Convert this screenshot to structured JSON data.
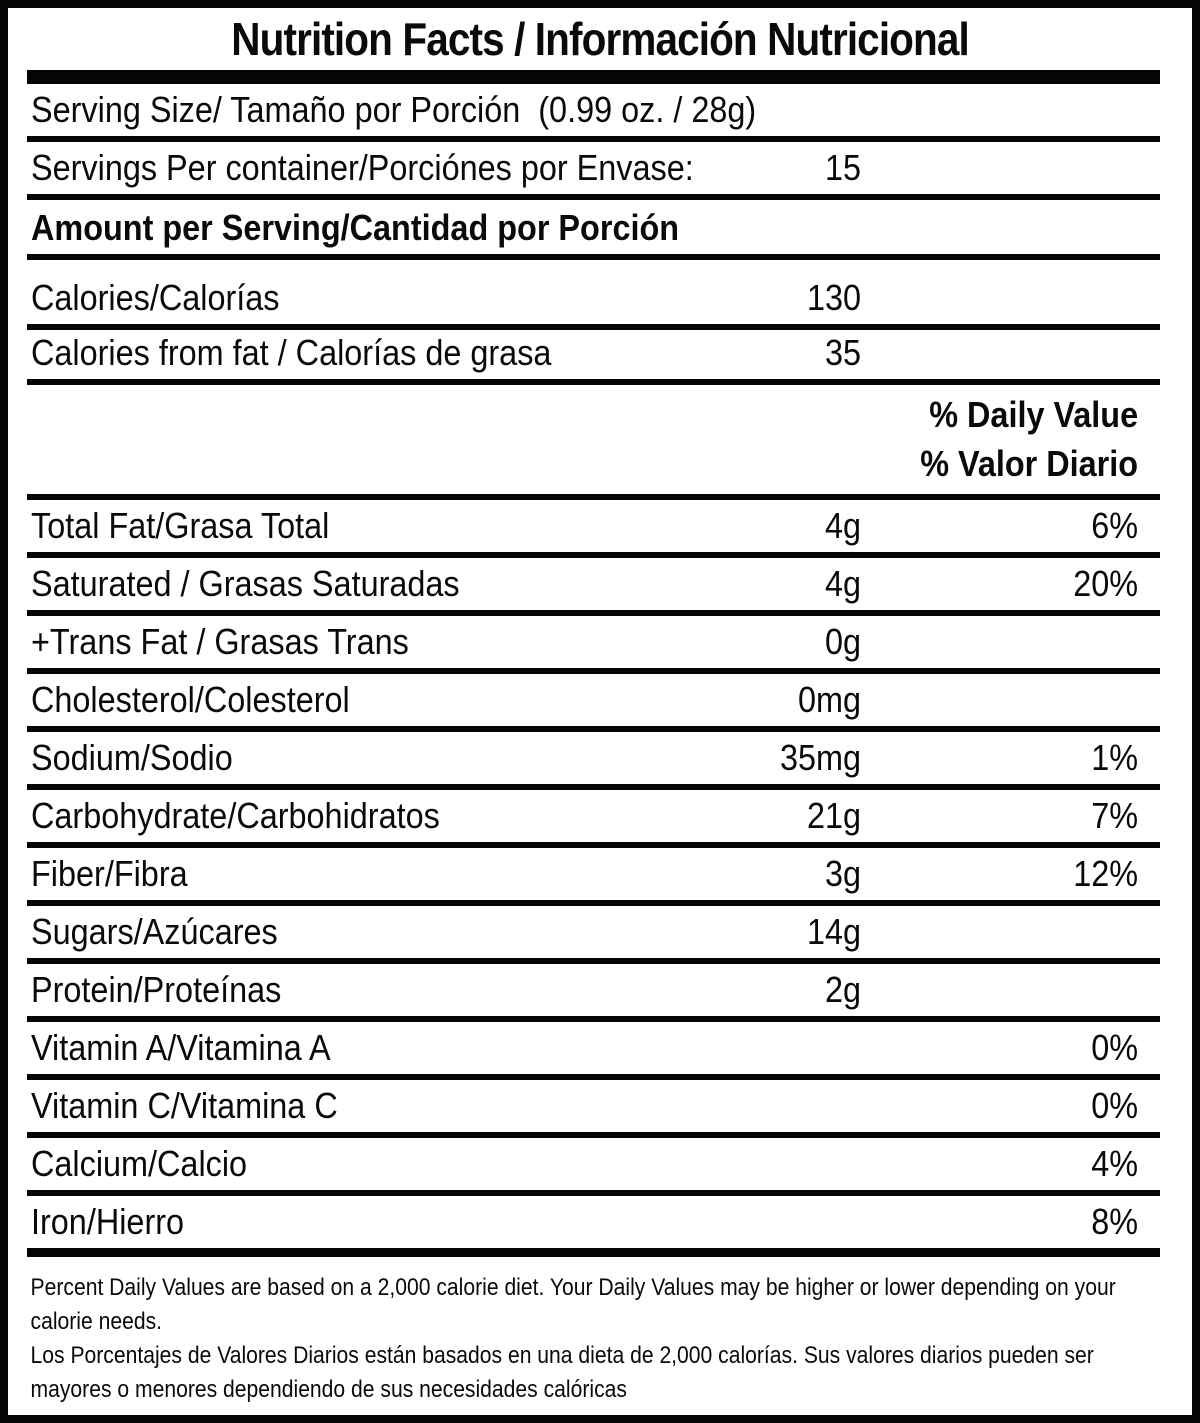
{
  "title": "Nutrition Facts / Información Nutricional",
  "serving_size": {
    "label": "Serving Size/ Tamaño por Porción",
    "value": "(0.99 oz. / 28g)"
  },
  "servings_per_container": {
    "label": "Servings Per container/Porciónes por Envase:",
    "value": "15"
  },
  "amount_per_serving_header": "Amount per Serving/Cantidad por Porción",
  "calories": {
    "label": "Calories/Calorías",
    "value": "130"
  },
  "calories_from_fat": {
    "label": "Calories from fat / Calorías de grasa",
    "value": "35"
  },
  "daily_value_header": {
    "en": "% Daily Value",
    "es": "% Valor Diario"
  },
  "nutrients": [
    {
      "label": "Total Fat/Grasa Total",
      "amount": "4g",
      "dv": "6%"
    },
    {
      "label": "Saturated / Grasas Saturadas",
      "amount": "4g",
      "dv": "20%"
    },
    {
      "label": "+Trans Fat / Grasas Trans",
      "amount": "0g",
      "dv": ""
    },
    {
      "label": "Cholesterol/Colesterol",
      "amount": "0mg",
      "dv": ""
    },
    {
      "label": "Sodium/Sodio",
      "amount": "35mg",
      "dv": "1%"
    },
    {
      "label": "Carbohydrate/Carbohidratos",
      "amount": "21g",
      "dv": "7%"
    },
    {
      "label": "Fiber/Fibra",
      "amount": "3g",
      "dv": "12%"
    },
    {
      "label": "Sugars/Azúcares",
      "amount": "14g",
      "dv": ""
    },
    {
      "label": "Protein/Proteínas",
      "amount": "2g",
      "dv": ""
    },
    {
      "label": "Vitamin A/Vitamina A",
      "amount": "",
      "dv": "0%"
    },
    {
      "label": "Vitamin C/Vitamina C",
      "amount": "",
      "dv": "0%"
    },
    {
      "label": "Calcium/Calcio",
      "amount": "",
      "dv": "4%"
    },
    {
      "label": "Iron/Hierro",
      "amount": "",
      "dv": "8%"
    }
  ],
  "footnotes": {
    "en_lines": [
      "Percent Daily Values are based on a 2,000 calorie diet. Your Daily Values may be higher or lower depending on your",
      "calorie needs."
    ],
    "es_lines": [
      "Los Porcentajes de Valores Diarios están basados en una dieta de 2,000 calorías. Sus valores diarios pueden ser",
      "mayores o menores dependiendo de sus necesidades calóricas"
    ]
  },
  "colors": {
    "ink": "#050505",
    "background": "#ffffff"
  }
}
